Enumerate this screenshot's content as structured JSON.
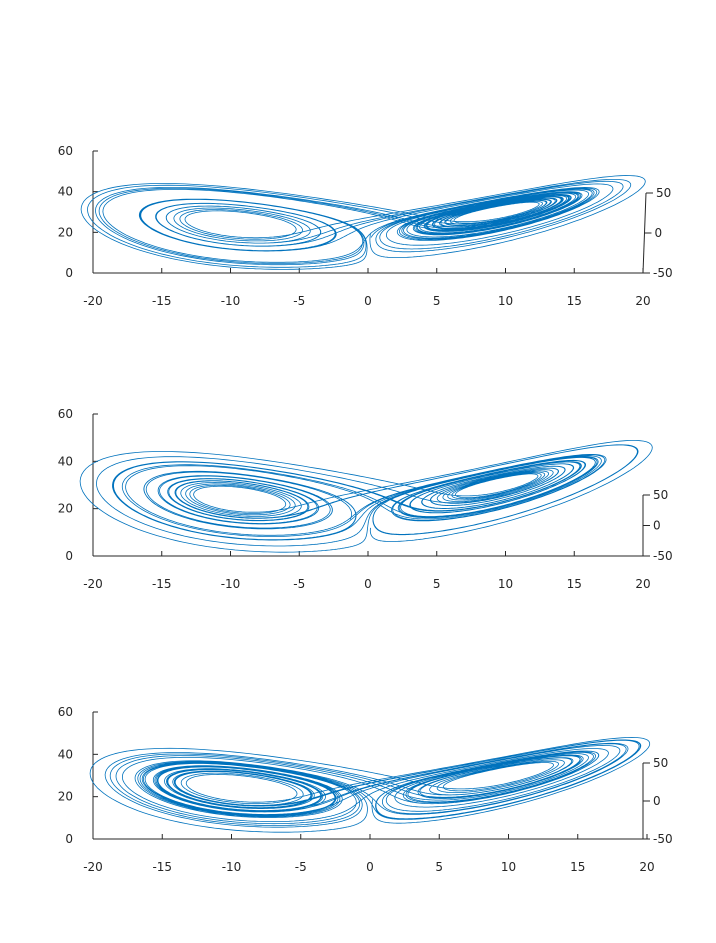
{
  "chart_data": [
    {
      "type": "line",
      "view": "3d-oblique",
      "series_color": "#0072bd",
      "attractor": {
        "sigma": 10,
        "rho": 28,
        "beta": 2.6666667,
        "x0": [
          0.2,
          0.0,
          20.0
        ],
        "rmin": 1.2,
        "rmax": 25.0,
        "chaos": 3.0
      },
      "x_axis": {
        "range": [
          -20,
          20
        ],
        "ticks": [
          -20,
          -15,
          -10,
          -5,
          0,
          5,
          10,
          15,
          20
        ],
        "tick_labels": [
          "-20",
          "-15",
          "-10",
          "-5",
          "0",
          "5",
          "10",
          "15",
          "20"
        ]
      },
      "z_axis": {
        "range": [
          0,
          60
        ],
        "ticks": [
          0,
          20,
          40,
          60
        ],
        "tick_labels": [
          "0",
          "20",
          "40",
          "60"
        ]
      },
      "y_axis": {
        "range": [
          -50,
          50
        ],
        "ticks": [
          -50,
          0,
          50
        ],
        "tick_labels": [
          "-50",
          "0",
          "50"
        ]
      },
      "title": "",
      "xlabel": "",
      "ylabel": "",
      "zlabel": ""
    },
    {
      "type": "line",
      "view": "3d-oblique",
      "series_color": "#0072bd",
      "attractor": {
        "sigma": 10,
        "rho": 28,
        "beta": 2.6666667,
        "x0": [
          0.2,
          0.0,
          12.0
        ],
        "rmin": 1.2,
        "rmax": 24.0,
        "chaos": 3.2
      },
      "x_axis": {
        "range": [
          -20,
          20
        ],
        "ticks": [
          -20,
          -15,
          -10,
          -5,
          0,
          5,
          10,
          15,
          20
        ],
        "tick_labels": [
          "-20",
          "-15",
          "-10",
          "-5",
          "0",
          "5",
          "10",
          "15",
          "20"
        ]
      },
      "z_axis": {
        "range": [
          0,
          60
        ],
        "ticks": [
          0,
          20,
          40,
          60
        ],
        "tick_labels": [
          "0",
          "20",
          "40",
          "60"
        ]
      },
      "y_axis": {
        "range": [
          -50,
          50
        ],
        "ticks": [
          -50,
          0,
          50
        ],
        "tick_labels": [
          "-50",
          "0",
          "50"
        ]
      },
      "title": "",
      "xlabel": "",
      "ylabel": "",
      "zlabel": ""
    },
    {
      "type": "line",
      "view": "3d-oblique",
      "series_color": "#0072bd",
      "attractor": {
        "sigma": 10,
        "rho": 28,
        "beta": 2.6666667,
        "x0": [
          0.2,
          0.0,
          19.0
        ],
        "rmin": 1.3,
        "rmax": 24.5,
        "chaos": 2.8
      },
      "x_axis": {
        "range": [
          -20,
          20
        ],
        "ticks": [
          -20,
          -15,
          -10,
          -5,
          0,
          5,
          10,
          15,
          20
        ],
        "tick_labels": [
          "-20",
          "-15",
          "-10",
          "-5",
          "0",
          "5",
          "10",
          "15",
          "20"
        ]
      },
      "z_axis": {
        "range": [
          0,
          60
        ],
        "ticks": [
          0,
          20,
          40,
          60
        ],
        "tick_labels": [
          "0",
          "20",
          "40",
          "60"
        ]
      },
      "y_axis": {
        "range": [
          -50,
          50
        ],
        "ticks": [
          -50,
          0,
          50
        ],
        "tick_labels": [
          "-50",
          "0",
          "50"
        ]
      },
      "title": "",
      "xlabel": "",
      "ylabel": "",
      "zlabel": ""
    }
  ]
}
